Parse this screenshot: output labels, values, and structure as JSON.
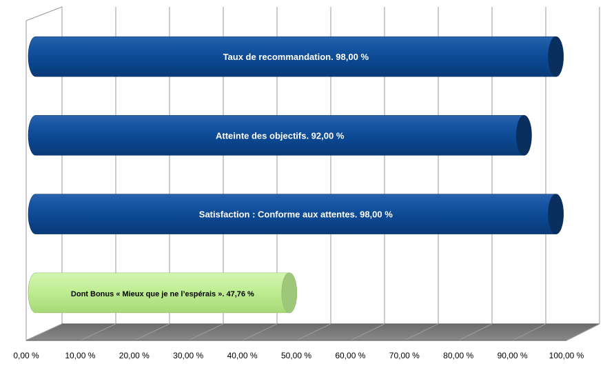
{
  "chart_data": {
    "type": "bar",
    "orientation": "horizontal",
    "style": "3d-cylinder",
    "categories": [
      "Taux de recommandation",
      "Atteinte des objectifs",
      "Satisfaction : Conforme aux attentes",
      "Dont Bonus « Mieux que je ne l’espérais »"
    ],
    "values": [
      98.0,
      92.0,
      98.0,
      47.76
    ],
    "data_labels": [
      "Taux de recommandation. 98,00 %",
      "Atteinte des objectifs. 92,00 %",
      "Satisfaction : Conforme aux attentes. 98,00 %",
      "Dont Bonus « Mieux que je ne l’espérais ». 47,76 %"
    ],
    "bar_colors": [
      "#0d4a93",
      "#0d4a93",
      "#0d4a93",
      "#b7e98a"
    ],
    "xlim": [
      0,
      100
    ],
    "x_ticks": [
      "0,00 %",
      "10,00 %",
      "20,00 %",
      "30,00 %",
      "40,00 %",
      "50,00 %",
      "60,00 %",
      "70,00 %",
      "80,00 %",
      "90,00 %",
      "100,00 %"
    ],
    "grid": true,
    "legend": "none",
    "title": "",
    "xlabel": "",
    "ylabel": ""
  }
}
